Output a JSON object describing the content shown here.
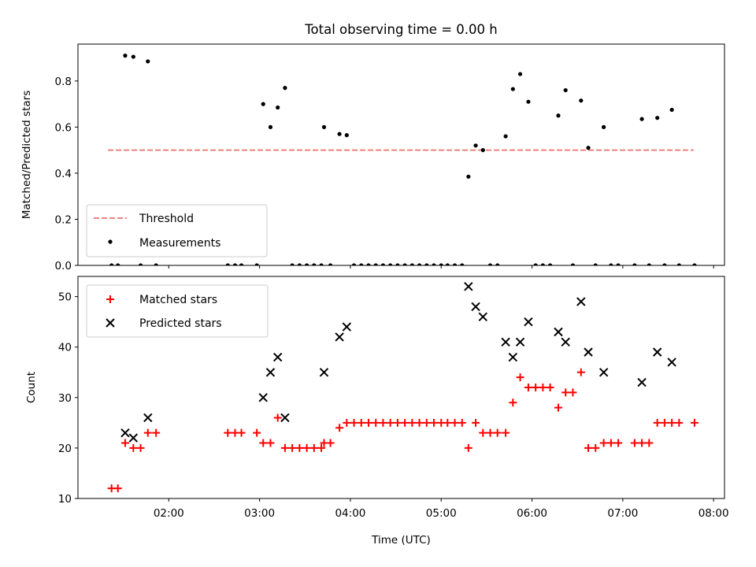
{
  "chart_data": {
    "type": "scatter",
    "title": "Total observing time = 0.00 h",
    "xlabel": "Time (UTC)",
    "x_tick_labels": [
      "02:00",
      "03:00",
      "04:00",
      "05:00",
      "06:00",
      "07:00",
      "08:00"
    ],
    "x_ticks_hours": [
      2,
      3,
      4,
      5,
      6,
      7,
      8
    ],
    "xlim_hours": [
      1.0,
      8.12
    ],
    "panels": [
      {
        "id": "ratio",
        "ylabel": "Matched/Predicted stars",
        "ylim": [
          0,
          0.96
        ],
        "y_ticks": [
          0.0,
          0.2,
          0.4,
          0.6,
          0.8
        ],
        "y_tick_labels": [
          "0.0",
          "0.2",
          "0.4",
          "0.6",
          "0.8"
        ],
        "legend_position": "lower left",
        "threshold": {
          "name": "Threshold",
          "value": 0.5,
          "x_range_hours": [
            1.33,
            7.78
          ],
          "color": "#f08080"
        },
        "measurements": {
          "name": "Measurements",
          "color": "#000000",
          "x_hours": [
            1.37,
            1.44,
            1.52,
            1.61,
            1.69,
            1.77,
            1.86,
            2.65,
            2.73,
            2.8,
            2.97,
            3.04,
            3.12,
            3.2,
            3.28,
            3.36,
            3.44,
            3.52,
            3.6,
            3.68,
            3.71,
            3.78,
            3.88,
            3.96,
            4.04,
            4.12,
            4.2,
            4.28,
            4.36,
            4.44,
            4.52,
            4.6,
            4.68,
            4.76,
            4.84,
            4.92,
            5.0,
            5.07,
            5.15,
            5.23,
            5.3,
            5.38,
            5.46,
            5.54,
            5.62,
            5.71,
            5.79,
            5.87,
            5.96,
            6.04,
            6.12,
            6.2,
            6.29,
            6.37,
            6.45,
            6.54,
            6.62,
            6.7,
            6.79,
            6.87,
            6.95,
            7.13,
            7.21,
            7.29,
            7.38,
            7.46,
            7.54,
            7.62,
            7.79
          ],
          "y": [
            0.0,
            0.0,
            0.91,
            0.905,
            0.0,
            0.885,
            0.0,
            0.0,
            0.0,
            0.0,
            0.0,
            0.7,
            0.6,
            0.685,
            0.77,
            0.0,
            0.0,
            0.0,
            0.0,
            0.0,
            0.6,
            0.0,
            0.57,
            0.565,
            0.0,
            0.0,
            0.0,
            0.0,
            0.0,
            0.0,
            0.0,
            0.0,
            0.0,
            0.0,
            0.0,
            0.0,
            0.0,
            0.0,
            0.0,
            0.0,
            0.385,
            0.52,
            0.5,
            0.0,
            0.0,
            0.56,
            0.765,
            0.83,
            0.71,
            0.0,
            0.0,
            0.0,
            0.65,
            0.76,
            0.0,
            0.715,
            0.51,
            0.0,
            0.6,
            0.0,
            0.0,
            0.0,
            0.635,
            0.0,
            0.64,
            0.0,
            0.675,
            0.0,
            0.0
          ]
        },
        "legend": [
          "Threshold",
          "Measurements"
        ]
      },
      {
        "id": "counts",
        "ylabel": "Count",
        "ylim": [
          10,
          54
        ],
        "y_ticks": [
          10,
          20,
          30,
          40,
          50
        ],
        "y_tick_labels": [
          "10",
          "20",
          "30",
          "40",
          "50"
        ],
        "legend_position": "upper left",
        "series": [
          {
            "name": "Matched stars",
            "marker": "plus",
            "color": "#ff0000",
            "x_hours": [
              1.37,
              1.44,
              1.52,
              1.61,
              1.69,
              1.77,
              1.86,
              2.65,
              2.73,
              2.8,
              2.97,
              3.04,
              3.12,
              3.2,
              3.28,
              3.36,
              3.44,
              3.52,
              3.6,
              3.68,
              3.71,
              3.78,
              3.88,
              3.96,
              4.04,
              4.12,
              4.2,
              4.28,
              4.36,
              4.44,
              4.52,
              4.6,
              4.68,
              4.76,
              4.84,
              4.92,
              5.0,
              5.07,
              5.15,
              5.23,
              5.3,
              5.38,
              5.46,
              5.54,
              5.62,
              5.71,
              5.79,
              5.87,
              5.96,
              6.04,
              6.12,
              6.2,
              6.29,
              6.37,
              6.45,
              6.54,
              6.62,
              6.7,
              6.79,
              6.87,
              6.95,
              7.13,
              7.21,
              7.29,
              7.38,
              7.46,
              7.54,
              7.62,
              7.79
            ],
            "y": [
              12,
              12,
              21,
              20,
              20,
              23,
              23,
              23,
              23,
              23,
              23,
              21,
              21,
              26,
              20,
              20,
              20,
              20,
              20,
              20,
              21,
              21,
              24,
              25,
              25,
              25,
              25,
              25,
              25,
              25,
              25,
              25,
              25,
              25,
              25,
              25,
              25,
              25,
              25,
              25,
              20,
              25,
              23,
              23,
              23,
              23,
              29,
              34,
              32,
              32,
              32,
              32,
              28,
              31,
              31,
              35,
              20,
              20,
              21,
              21,
              21,
              21,
              21,
              21,
              25,
              25,
              25,
              25,
              25
            ]
          },
          {
            "name": "Predicted stars",
            "marker": "x",
            "color": "#000000",
            "x_hours": [
              1.52,
              1.61,
              1.77,
              3.04,
              3.12,
              3.2,
              3.28,
              3.71,
              3.88,
              3.96,
              5.3,
              5.38,
              5.46,
              5.71,
              5.79,
              5.87,
              5.96,
              6.29,
              6.37,
              6.54,
              6.62,
              6.79,
              7.21,
              7.38,
              7.54
            ],
            "y": [
              23,
              22,
              26,
              30,
              35,
              38,
              26,
              35,
              42,
              44,
              52,
              48,
              46,
              41,
              38,
              41,
              45,
              43,
              41,
              49,
              39,
              35,
              33,
              39,
              37
            ]
          }
        ],
        "legend": [
          "Matched stars",
          "Predicted stars"
        ]
      }
    ]
  }
}
